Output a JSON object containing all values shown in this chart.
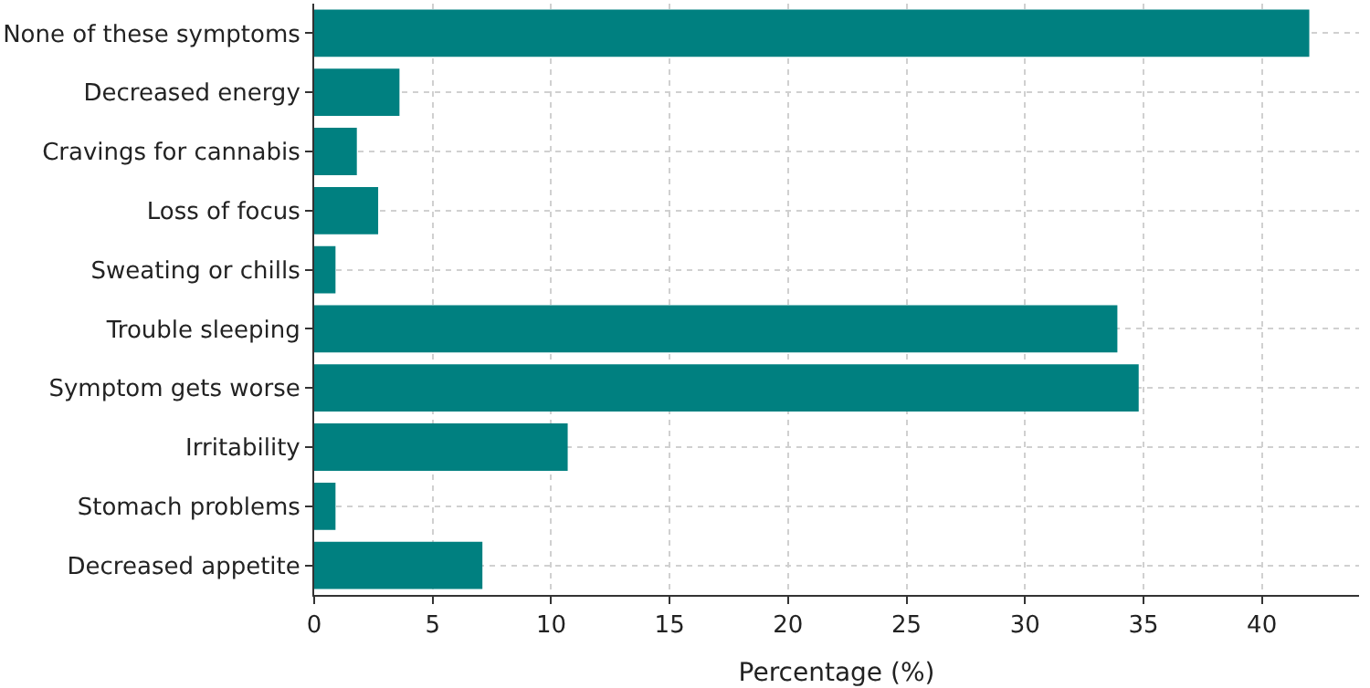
{
  "chart_data": {
    "type": "bar",
    "orientation": "horizontal",
    "xlabel": "Percentage (%)",
    "categories": [
      "None of these symptoms",
      "Decreased energy",
      "Cravings for cannabis",
      "Loss of focus",
      "Sweating or chills",
      "Trouble sleeping",
      "Symptom gets worse",
      "Irritability",
      "Stomach problems",
      "Decreased appetite"
    ],
    "values": [
      42.0,
      3.6,
      1.8,
      2.7,
      0.9,
      33.9,
      34.8,
      10.7,
      0.9,
      7.1
    ],
    "color": "#008080",
    "xlim": [
      0,
      44.1
    ],
    "xticks": [
      0,
      5,
      10,
      15,
      20,
      25,
      30,
      35,
      40
    ],
    "grid": true
  }
}
